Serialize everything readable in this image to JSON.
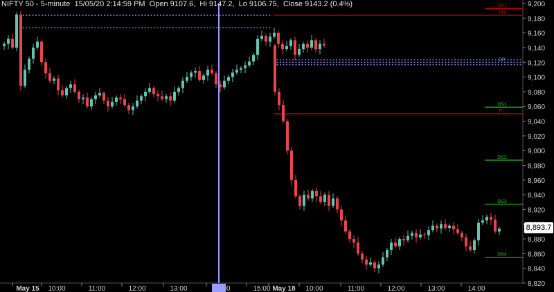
{
  "header": {
    "symbol": "NIFTY 50",
    "interval": "5-minute",
    "datetime": "15/05/20 2:14:59 PM",
    "open_text": "Open 9107.6,",
    "high_text": "Hi 9147.2,",
    "low_text": "Lo 9106.75,",
    "close_text": "Close 9143.2 (0.4%)"
  },
  "last_price_label": "8,893.7",
  "colors": {
    "background": "#000000",
    "up": "#63c2b0",
    "down": "#e8444d",
    "dotted": "#7f8cf0",
    "red_level": "#cc0000",
    "green_level": "#22bb22",
    "crosshair": "#9a9cff",
    "axis_text": "#d0d0d0",
    "label_bg": "#ffffff"
  },
  "chart_data": {
    "type": "candlestick",
    "ylim": [
      8820,
      9200
    ],
    "y_ticks": [
      "9,200",
      "9,180",
      "9,160",
      "9,140",
      "9,120",
      "9,100",
      "9,080",
      "9,060",
      "9,040",
      "9,020",
      "9,000",
      "8,980",
      "8,960",
      "8,940",
      "8,920",
      "8,900",
      "8,880",
      "8,860",
      "8,840",
      "8,820"
    ],
    "x_ticks": [
      "May 15",
      "10:00",
      "11:00",
      "12:00",
      "13:00",
      "14:00",
      "15:00",
      "May 18",
      "10:00",
      "11:00",
      "12:00",
      "13:00",
      "14:00"
    ],
    "levels": [
      {
        "label": "DR1",
        "value": 9193,
        "color": "#cc0000",
        "style": "solid"
      },
      {
        "label": "PH",
        "value": 9184,
        "color": "#cc0000",
        "style": "solid"
      },
      {
        "label": "DP",
        "value": 9120,
        "color": "#7f8cf0",
        "style": "dotted"
      },
      {
        "label": "DS1",
        "value": 9059,
        "color": "#22bb22",
        "style": "solid"
      },
      {
        "label": "PL",
        "value": 9050,
        "color": "#cc0000",
        "style": "solid"
      },
      {
        "label": "DS2",
        "value": 8987,
        "color": "#22bb22",
        "style": "solid"
      },
      {
        "label": "DS3",
        "value": 8927,
        "color": "#22bb22",
        "style": "solid"
      },
      {
        "label": "DS4",
        "value": 8855,
        "color": "#22bb22",
        "style": "solid"
      }
    ],
    "prev_day_levels": [
      9184,
      9167
    ],
    "day1_closes": [
      9145,
      9152,
      9140,
      9185,
      9088,
      9110,
      9125,
      9140,
      9148,
      9120,
      9105,
      9095,
      9098,
      9082,
      9075,
      9085,
      9090,
      9080,
      9070,
      9072,
      9060,
      9070,
      9075,
      9078,
      9068,
      9060,
      9066,
      9072,
      9070,
      9062,
      9055,
      9060,
      9068,
      9074,
      9080,
      9085,
      9077,
      9074,
      9070,
      9074,
      9068,
      9080,
      9085,
      9095,
      9100,
      9106,
      9108,
      9096,
      9102,
      9110,
      9105,
      9090,
      9086,
      9095,
      9100,
      9106,
      9110,
      9112,
      9116,
      9121,
      9130,
      9152,
      9156,
      9148,
      9155,
      9160,
      9145,
      9138,
      9142,
      9150,
      9130,
      9138,
      9145,
      9140,
      9150,
      9138,
      9145,
      9143
    ],
    "day2_closes": [
      9080,
      9062,
      9040,
      9000,
      8960,
      8938,
      8925,
      8940,
      8935,
      8945,
      8938,
      8930,
      8940,
      8925,
      8935,
      8920,
      8905,
      8890,
      8880,
      8875,
      8860,
      8852,
      8845,
      8848,
      8840,
      8845,
      8855,
      8865,
      8875,
      8870,
      8880,
      8878,
      8884,
      8888,
      8882,
      8886,
      8885,
      8892,
      8898,
      8894,
      8900,
      8895,
      8898,
      8893,
      8888,
      8882,
      8870,
      8865,
      8878,
      8902,
      8905,
      8910,
      8906,
      8890,
      8893.7
    ]
  }
}
